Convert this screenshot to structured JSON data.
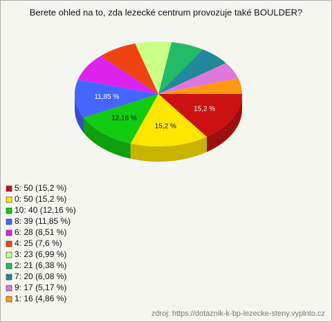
{
  "chart_data": {
    "type": "pie",
    "title": "Berete ohled na to, zda lezecké centrum provozuje také BOULDER?",
    "categories": [
      "5",
      "0",
      "10",
      "8",
      "6",
      "4",
      "3",
      "2",
      "7",
      "9",
      "1"
    ],
    "values": [
      15.2,
      15.2,
      12.16,
      11.85,
      8.51,
      7.6,
      6.99,
      6.38,
      6.08,
      5.17,
      4.86
    ],
    "value_labels": [
      "15,2 %",
      "15,2 %",
      "12,16 %",
      "11,85 %",
      null,
      null,
      null,
      null,
      null,
      null,
      null
    ],
    "legend": [
      "5: 50 (15,2 %)",
      "0: 50 (15,2 %)",
      "10: 40 (12,16 %)",
      "8: 39 (11,85 %)",
      "6: 28 (8,51 %)",
      "4: 25 (7,6 %)",
      "3: 23 (6,99 %)",
      "2: 21 (6,38 %)",
      "7: 20 (6,08 %)",
      "9: 17 (5,17 %)",
      "1: 16 (4,86 %)"
    ],
    "colors": [
      "#cc1111",
      "#ffe600",
      "#11cc11",
      "#4466ff",
      "#dd22ee",
      "#ee4411",
      "#ccff88",
      "#22bb66",
      "#228899",
      "#dd77dd",
      "#ff9911"
    ],
    "source": "zdroj: https://dotaznik-k-bp-lezecke-steny.vyplnto.cz"
  }
}
